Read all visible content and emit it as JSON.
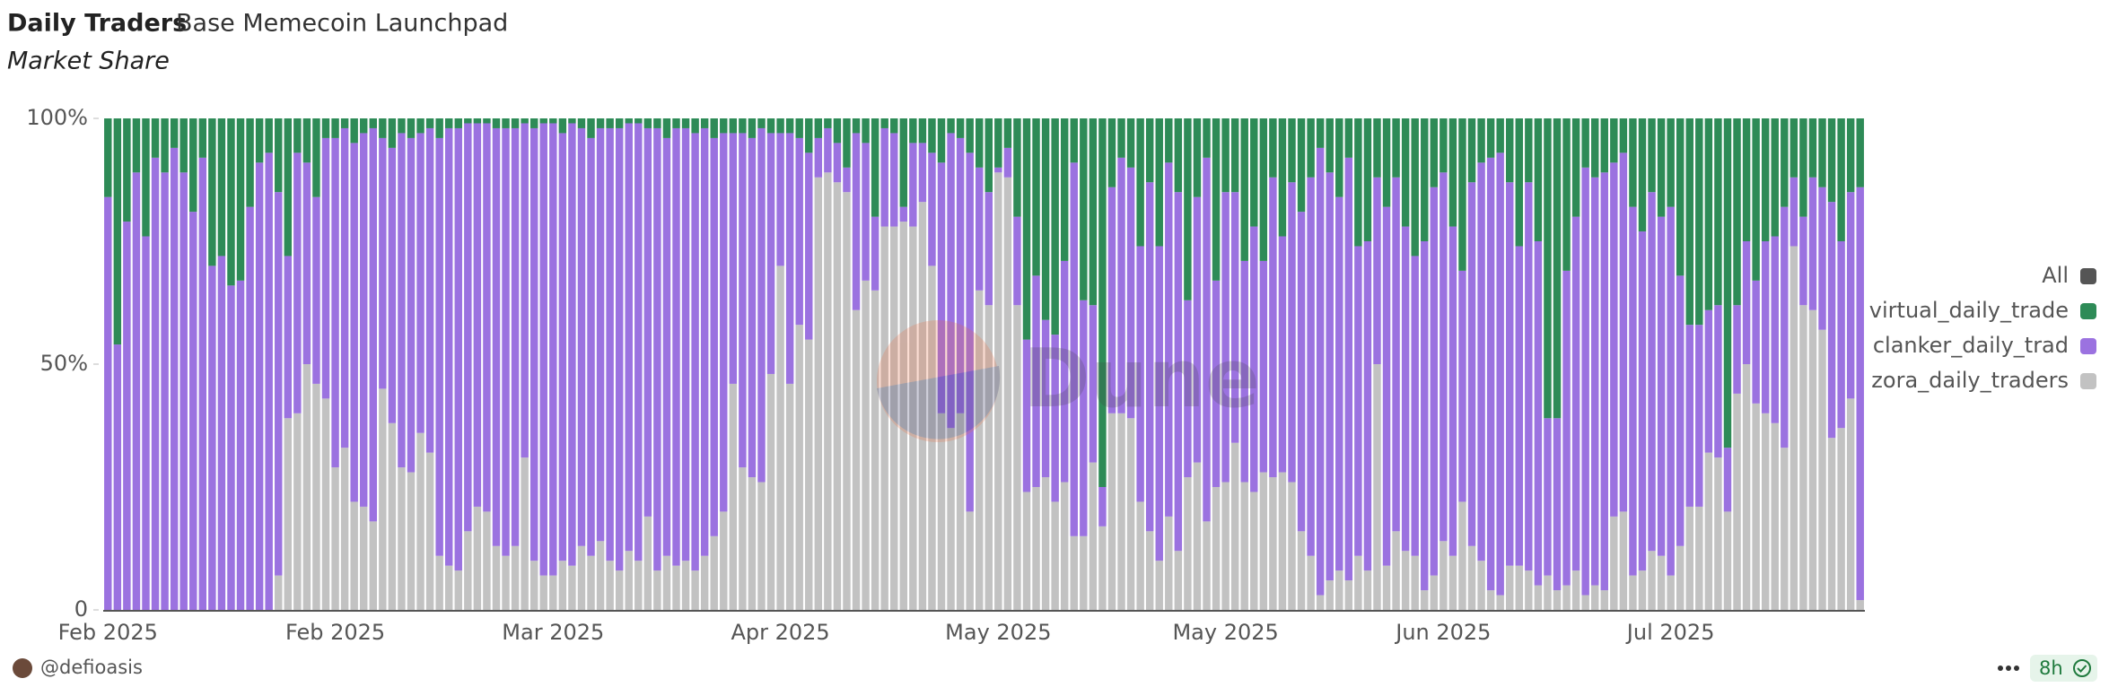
{
  "chart_data": {
    "type": "stacked_bar_100",
    "title": "Daily Traders",
    "subtitle": "Base Memecoin Launchpad",
    "caption": "Market Share",
    "categories": [
      "Feb 2025",
      null,
      null,
      null,
      null,
      null,
      null,
      null,
      null,
      null,
      null,
      null,
      null,
      null,
      null,
      null,
      null,
      null,
      null,
      null,
      null,
      null,
      null,
      null,
      "Feb 2025",
      null,
      null,
      null,
      null,
      null,
      null,
      null,
      null,
      null,
      null,
      null,
      null,
      null,
      null,
      null,
      null,
      null,
      null,
      null,
      null,
      null,
      null,
      "Mar 2025",
      null,
      null,
      null,
      null,
      null,
      null,
      null,
      null,
      null,
      null,
      null,
      null,
      null,
      null,
      null,
      null,
      null,
      null,
      null,
      null,
      null,
      null,
      null,
      "Apr 2025",
      null,
      null,
      null,
      null,
      null,
      null,
      null,
      null,
      null,
      null,
      null,
      null,
      null,
      null,
      null,
      null,
      null,
      null,
      null,
      null,
      null,
      null,
      "May 2025",
      null,
      null,
      null,
      null,
      null,
      null,
      null,
      null,
      null,
      null,
      null,
      null,
      null,
      null,
      null,
      null,
      null,
      null,
      null,
      null,
      null,
      null,
      null,
      "May 2025",
      null,
      null,
      null,
      null,
      null,
      null,
      null,
      null,
      null,
      null,
      null,
      null,
      null,
      null,
      null,
      null,
      null,
      null,
      null,
      null,
      null,
      null,
      "Jun 2025",
      null,
      null,
      null,
      null,
      null,
      null,
      null,
      null,
      null,
      null,
      null,
      null,
      null,
      null,
      null,
      null,
      null,
      null,
      null,
      null,
      null,
      null,
      null,
      "Jul 2025",
      null,
      null,
      null,
      null,
      null,
      null,
      null,
      null,
      null,
      null,
      null,
      null,
      null,
      null,
      null,
      null,
      null,
      null,
      null,
      null
    ],
    "series": [
      {
        "name": "virtual_daily_trade",
        "color": "#2e8b57",
        "values": [
          16,
          46,
          21,
          11,
          24,
          8,
          11,
          6,
          11,
          19,
          8,
          30,
          28,
          34,
          33,
          18,
          9,
          7,
          15,
          28,
          7,
          9,
          16,
          4,
          4,
          2,
          5,
          3,
          2,
          4,
          6,
          3,
          4,
          3,
          2,
          4,
          2,
          2,
          1,
          1,
          1,
          2,
          2,
          2,
          1,
          2,
          1,
          1,
          3,
          1,
          2,
          4,
          2,
          2,
          2,
          1,
          1,
          2,
          2,
          4,
          2,
          2,
          3,
          2,
          4,
          3,
          3,
          3,
          4,
          2,
          3,
          3,
          3,
          4,
          7,
          4,
          2,
          5,
          10,
          3,
          5,
          20,
          2,
          3,
          18,
          5,
          5,
          7,
          9,
          3,
          4,
          7,
          10,
          15,
          10,
          6,
          20,
          45,
          32,
          41,
          44,
          29,
          9,
          37,
          38,
          75,
          14,
          8,
          10,
          26,
          13,
          26,
          9,
          15,
          37,
          16,
          8,
          33,
          15,
          15,
          29,
          22,
          29,
          12,
          24,
          13,
          19,
          12,
          6,
          11,
          16,
          8,
          26,
          25,
          12,
          18,
          12,
          22,
          28,
          25,
          14,
          11,
          22,
          31,
          13,
          9,
          8,
          7,
          13,
          26,
          13,
          25,
          61,
          61,
          31,
          20,
          10,
          12,
          11,
          9,
          7,
          18,
          23,
          15,
          20,
          18,
          32,
          42,
          42,
          39,
          38,
          67,
          38,
          25,
          33,
          25,
          24,
          18,
          12,
          20,
          12,
          14,
          17,
          25,
          15,
          14
        ]
      },
      {
        "name": "clanker_daily_trad",
        "color": "#9b72e0",
        "values": [
          84,
          54,
          79,
          89,
          76,
          92,
          89,
          94,
          89,
          81,
          92,
          70,
          72,
          66,
          67,
          82,
          91,
          93,
          78,
          33,
          53,
          41,
          38,
          53,
          67,
          65,
          73,
          76,
          80,
          51,
          56,
          68,
          68,
          61,
          66,
          85,
          89,
          90,
          83,
          78,
          79,
          85,
          87,
          85,
          68,
          88,
          92,
          92,
          87,
          90,
          85,
          85,
          84,
          88,
          90,
          87,
          89,
          79,
          90,
          85,
          89,
          88,
          89,
          87,
          81,
          77,
          51,
          68,
          69,
          72,
          49,
          27,
          51,
          38,
          38,
          8,
          9,
          8,
          5,
          36,
          28,
          15,
          20,
          19,
          3,
          17,
          12,
          23,
          51,
          60,
          56,
          73,
          25,
          23,
          1,
          6,
          18,
          31,
          43,
          32,
          34,
          45,
          76,
          48,
          32,
          8,
          46,
          52,
          51,
          52,
          71,
          64,
          72,
          73,
          36,
          54,
          74,
          42,
          59,
          51,
          45,
          54,
          43,
          61,
          48,
          61,
          65,
          77,
          91,
          83,
          76,
          86,
          63,
          67,
          38,
          73,
          72,
          66,
          61,
          71,
          79,
          75,
          67,
          47,
          74,
          81,
          88,
          90,
          78,
          65,
          79,
          70,
          32,
          35,
          64,
          72,
          87,
          83,
          85,
          72,
          73,
          75,
          69,
          73,
          69,
          75,
          55,
          37,
          37,
          29,
          31,
          13,
          18,
          25,
          25,
          35,
          38,
          49,
          14,
          18,
          27,
          29,
          48,
          38,
          42,
          84
        ]
      },
      {
        "name": "zora_daily_traders",
        "color": "#c2c2c2",
        "values": [
          0,
          0,
          0,
          0,
          0,
          0,
          0,
          0,
          0,
          0,
          0,
          0,
          0,
          0,
          0,
          0,
          0,
          0,
          7,
          39,
          40,
          50,
          46,
          43,
          29,
          33,
          22,
          21,
          18,
          45,
          38,
          29,
          28,
          36,
          32,
          11,
          9,
          8,
          16,
          21,
          20,
          13,
          11,
          13,
          31,
          10,
          7,
          7,
          10,
          9,
          13,
          11,
          14,
          10,
          8,
          12,
          10,
          19,
          8,
          11,
          9,
          10,
          8,
          11,
          15,
          20,
          46,
          29,
          27,
          26,
          48,
          70,
          46,
          58,
          55,
          88,
          89,
          87,
          85,
          61,
          67,
          65,
          78,
          78,
          79,
          78,
          83,
          70,
          40,
          37,
          40,
          20,
          65,
          62,
          89,
          88,
          62,
          24,
          25,
          27,
          22,
          26,
          15,
          15,
          30,
          17,
          40,
          40,
          39,
          22,
          16,
          10,
          19,
          12,
          27,
          30,
          18,
          25,
          26,
          34,
          26,
          24,
          28,
          27,
          28,
          26,
          16,
          11,
          3,
          6,
          8,
          6,
          11,
          8,
          50,
          9,
          16,
          12,
          11,
          4,
          7,
          14,
          11,
          22,
          13,
          10,
          4,
          3,
          9,
          9,
          8,
          5,
          7,
          4,
          5,
          8,
          3,
          5,
          4,
          19,
          20,
          7,
          8,
          12,
          11,
          7,
          13,
          21,
          21,
          32,
          31,
          20,
          44,
          50,
          42,
          40,
          38,
          33,
          74,
          62,
          61,
          57,
          35,
          37,
          43,
          2
        ]
      }
    ],
    "legend_all": "All",
    "legend_all_color": "#555555",
    "legend_position": "right",
    "ylim": [
      0,
      100
    ],
    "yticks": [
      0,
      {
        "value": 50,
        "label": "50%"
      },
      {
        "value": 100,
        "label": "100%"
      }
    ],
    "grid": false,
    "watermark": "Dune",
    "author": "@defioasis",
    "freshness": "8h"
  }
}
